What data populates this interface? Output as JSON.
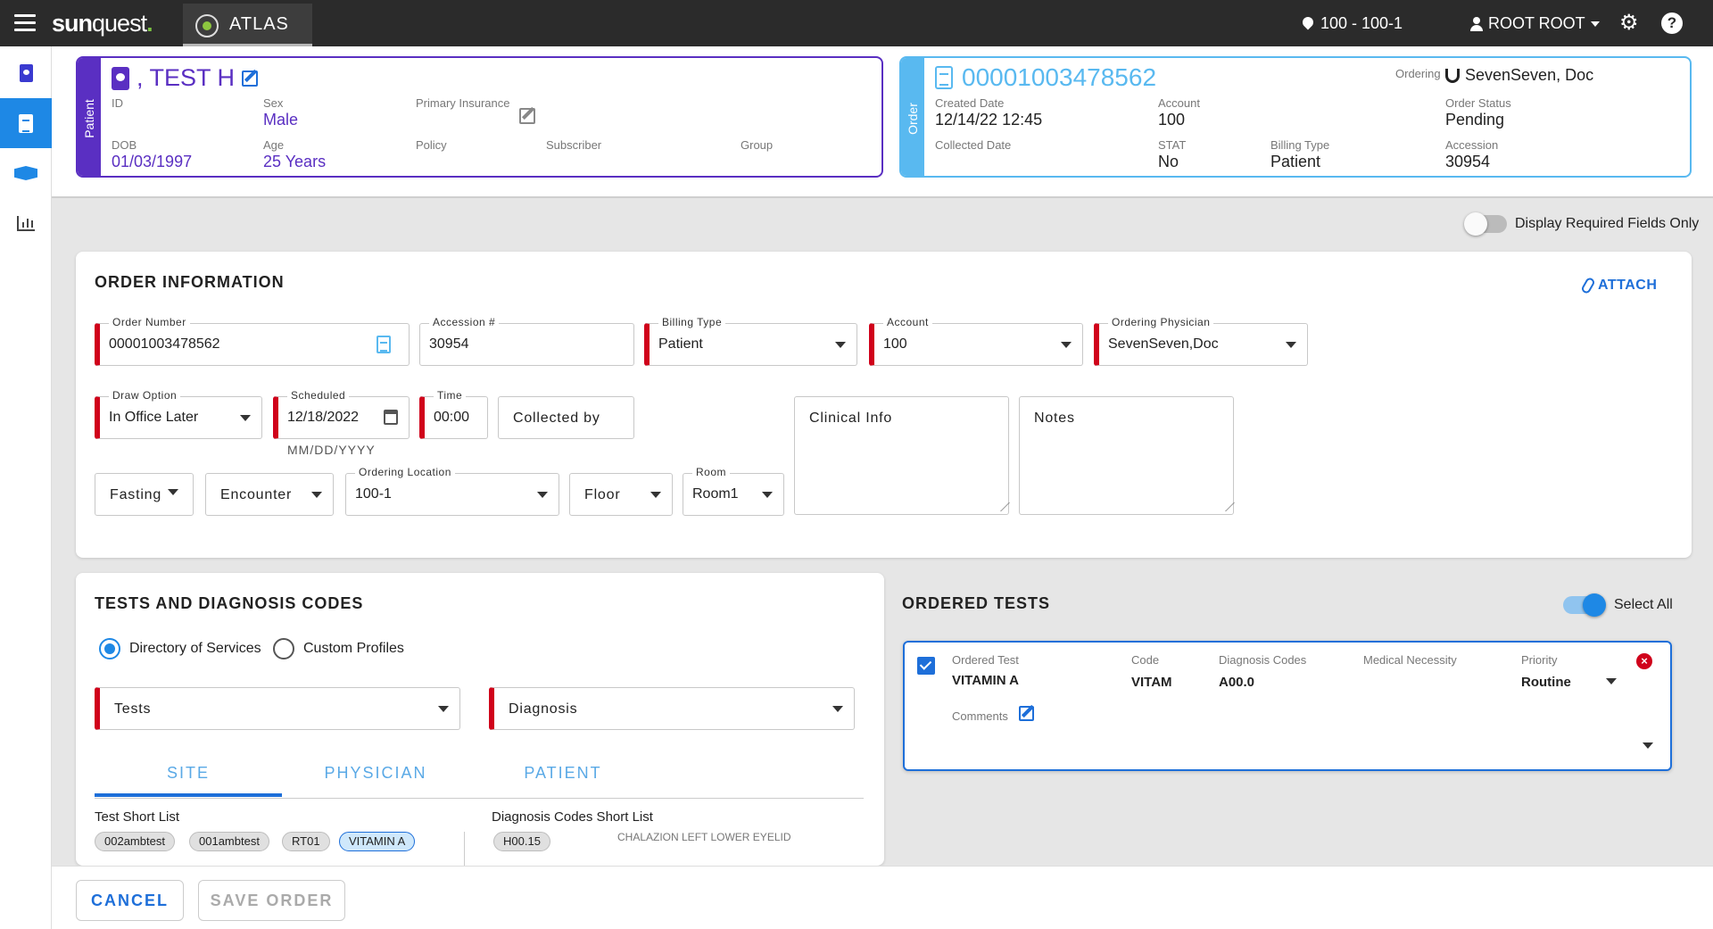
{
  "topbar": {
    "logo_main": "sun",
    "logo_quest": "quest",
    "logo_dot": ".",
    "app_tab": "ATLAS",
    "location": "100 - 100-1",
    "user": "ROOT ROOT",
    "help": "?"
  },
  "patient": {
    "side_label": "Patient",
    "name": ", TEST H",
    "id_label": "ID",
    "sex_label": "Sex",
    "sex": "Male",
    "insurance_label": "Primary Insurance",
    "dob_label": "DOB",
    "dob": "01/03/1997",
    "age_label": "Age",
    "age": "25 Years",
    "policy_label": "Policy",
    "subscriber_label": "Subscriber",
    "group_label": "Group"
  },
  "order": {
    "side_label": "Order",
    "number": "00001003478562",
    "ordering_label": "Ordering",
    "ordering_physician": "SevenSeven, Doc",
    "created_label": "Created Date",
    "created": "12/14/22 12:45",
    "account_label": "Account",
    "account": "100",
    "status_label": "Order Status",
    "status": "Pending",
    "collected_label": "Collected Date",
    "stat_label": "STAT",
    "stat": "No",
    "billing_label": "Billing Type",
    "billing": "Patient",
    "accession_label": "Accession",
    "accession": "30954"
  },
  "required_toggle": {
    "label": "Display Required Fields Only",
    "on": false
  },
  "order_info": {
    "title": "ORDER INFORMATION",
    "attach": "ATTACH",
    "order_number": {
      "label": "Order Number",
      "value": "00001003478562"
    },
    "accession": {
      "label": "Accession #",
      "value": "30954"
    },
    "billing_type": {
      "label": "Billing Type",
      "value": "Patient"
    },
    "account": {
      "label": "Account",
      "value": "100"
    },
    "ordering_physician": {
      "label": "Ordering Physician",
      "value": "SevenSeven,Doc"
    },
    "draw_option": {
      "label": "Draw Option",
      "value": "In Office Later"
    },
    "scheduled": {
      "label": "Scheduled",
      "value": "12/18/2022",
      "hint": "MM/DD/YYYY"
    },
    "time": {
      "label": "Time",
      "value": "00:00"
    },
    "collected_by": "Collected by",
    "clinical_info": "Clinical Info",
    "notes": "Notes",
    "fasting": "Fasting",
    "encounter": "Encounter",
    "ordering_location": {
      "label": "Ordering Location",
      "value": "100-1"
    },
    "floor": "Floor",
    "room": {
      "label": "Room",
      "value": "Room1"
    }
  },
  "tests": {
    "title": "TESTS AND DIAGNOSIS CODES",
    "radio_dos": "Directory of Services",
    "radio_custom": "Custom Profiles",
    "tests_placeholder": "Tests",
    "diagnosis_placeholder": "Diagnosis",
    "tab_site": "SITE",
    "tab_physician": "PHYSICIAN",
    "tab_patient": "PATIENT",
    "test_short_list_label": "Test Short List",
    "test_chips": [
      "002ambtest",
      "001ambtest",
      "RT01",
      "VITAMIN A"
    ],
    "diag_short_list_label": "Diagnosis Codes Short List",
    "diag_code": "H00.15",
    "diag_desc": "CHALAZION LEFT LOWER EYELID"
  },
  "ordered_tests": {
    "title": "ORDERED TESTS",
    "select_all": "Select All",
    "select_all_on": true,
    "headers": {
      "ordered_test": "Ordered Test",
      "code": "Code",
      "diagnosis_codes": "Diagnosis Codes",
      "medical_necessity": "Medical Necessity",
      "priority": "Priority"
    },
    "test": "VITAMIN A",
    "code": "VITAM",
    "diagnosis": "A00.0",
    "priority": "Routine",
    "comments_label": "Comments",
    "remove": "×"
  },
  "footer": {
    "cancel": "CANCEL",
    "save": "SAVE ORDER"
  },
  "colors": {
    "patient_accent": "#5a2fc2",
    "order_accent": "#59b9f0",
    "primary": "#1e6fd9",
    "required": "#d0021b"
  }
}
